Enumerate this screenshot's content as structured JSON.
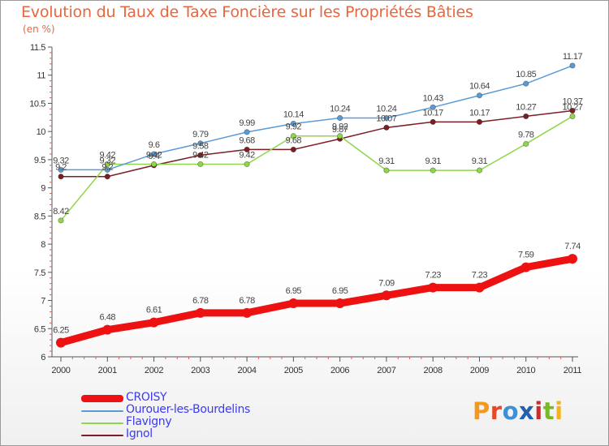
{
  "title": "Evolution du Taux de Taxe Foncière sur les Propriétés Bâties",
  "subtitle": "(en %)",
  "brand": {
    "letters": [
      "P",
      "r",
      "o",
      "x",
      "i",
      "t",
      "i"
    ],
    "colors": [
      "#f39a1e",
      "#e6492a",
      "#3d8fd6",
      "#1f60b0",
      "#d12a2a",
      "#79b828",
      "#f3b21e"
    ]
  },
  "chart_data": {
    "type": "line",
    "title": "Evolution du Taux de Taxe Foncière sur les Propriétés Bâties",
    "ylabel": "(en %)",
    "x": [
      "2000",
      "2001",
      "2002",
      "2003",
      "2004",
      "2005",
      "2006",
      "2007",
      "2008",
      "2009",
      "2010",
      "2011"
    ],
    "ylim": [
      6,
      11.5
    ],
    "yticks": [
      "6",
      "6.5",
      "7",
      "7.5",
      "8",
      "8.5",
      "9",
      "9.5",
      "10",
      "10.5",
      "11",
      "11.5"
    ],
    "grid": false,
    "legend_position": "bottom-left",
    "series": [
      {
        "name": "CROISY",
        "color": "#ee1111",
        "values": [
          6.25,
          6.48,
          6.61,
          6.78,
          6.78,
          6.95,
          6.95,
          7.09,
          7.23,
          7.23,
          7.59,
          7.74
        ],
        "labels": [
          "6.25",
          "6.48",
          "6.61",
          "6.78",
          "6.78",
          "6.95",
          "6.95",
          "7.09",
          "7.23",
          "7.23",
          "7.59",
          "7.74"
        ]
      },
      {
        "name": "Ourouer-les-Bourdelins",
        "color": "#5b9bd5",
        "values": [
          9.32,
          9.32,
          9.6,
          9.79,
          9.99,
          10.14,
          10.24,
          10.24,
          10.43,
          10.64,
          10.85,
          11.17
        ],
        "labels": [
          "9.32",
          "9.32",
          "9.6",
          "9.79",
          "9.99",
          "10.14",
          "10.24",
          "10.24",
          "10.43",
          "10.64",
          "10.85",
          "11.17"
        ]
      },
      {
        "name": "Flavigny",
        "color": "#8fd64a",
        "values": [
          8.42,
          9.42,
          9.42,
          9.42,
          9.42,
          9.92,
          9.92,
          9.31,
          9.31,
          9.31,
          9.78,
          10.27
        ],
        "labels": [
          "8.42",
          "9.42",
          "9.42",
          "9.42",
          "9.42",
          "9.92",
          "9.92",
          "9.31",
          "9.31",
          "9.31",
          "9.78",
          "10.27"
        ]
      },
      {
        "name": "Ignol",
        "color": "#7a1f23",
        "values": [
          9.2,
          9.2,
          9.4,
          9.58,
          9.68,
          9.68,
          9.87,
          10.07,
          10.17,
          10.17,
          10.27,
          10.37
        ],
        "labels": [
          "9.2",
          "9.2",
          "9.4",
          "9.58",
          "9.68",
          "9.68",
          "9.87",
          "10.07",
          "10.17",
          "10.17",
          "10.27",
          "10.37"
        ]
      }
    ]
  }
}
